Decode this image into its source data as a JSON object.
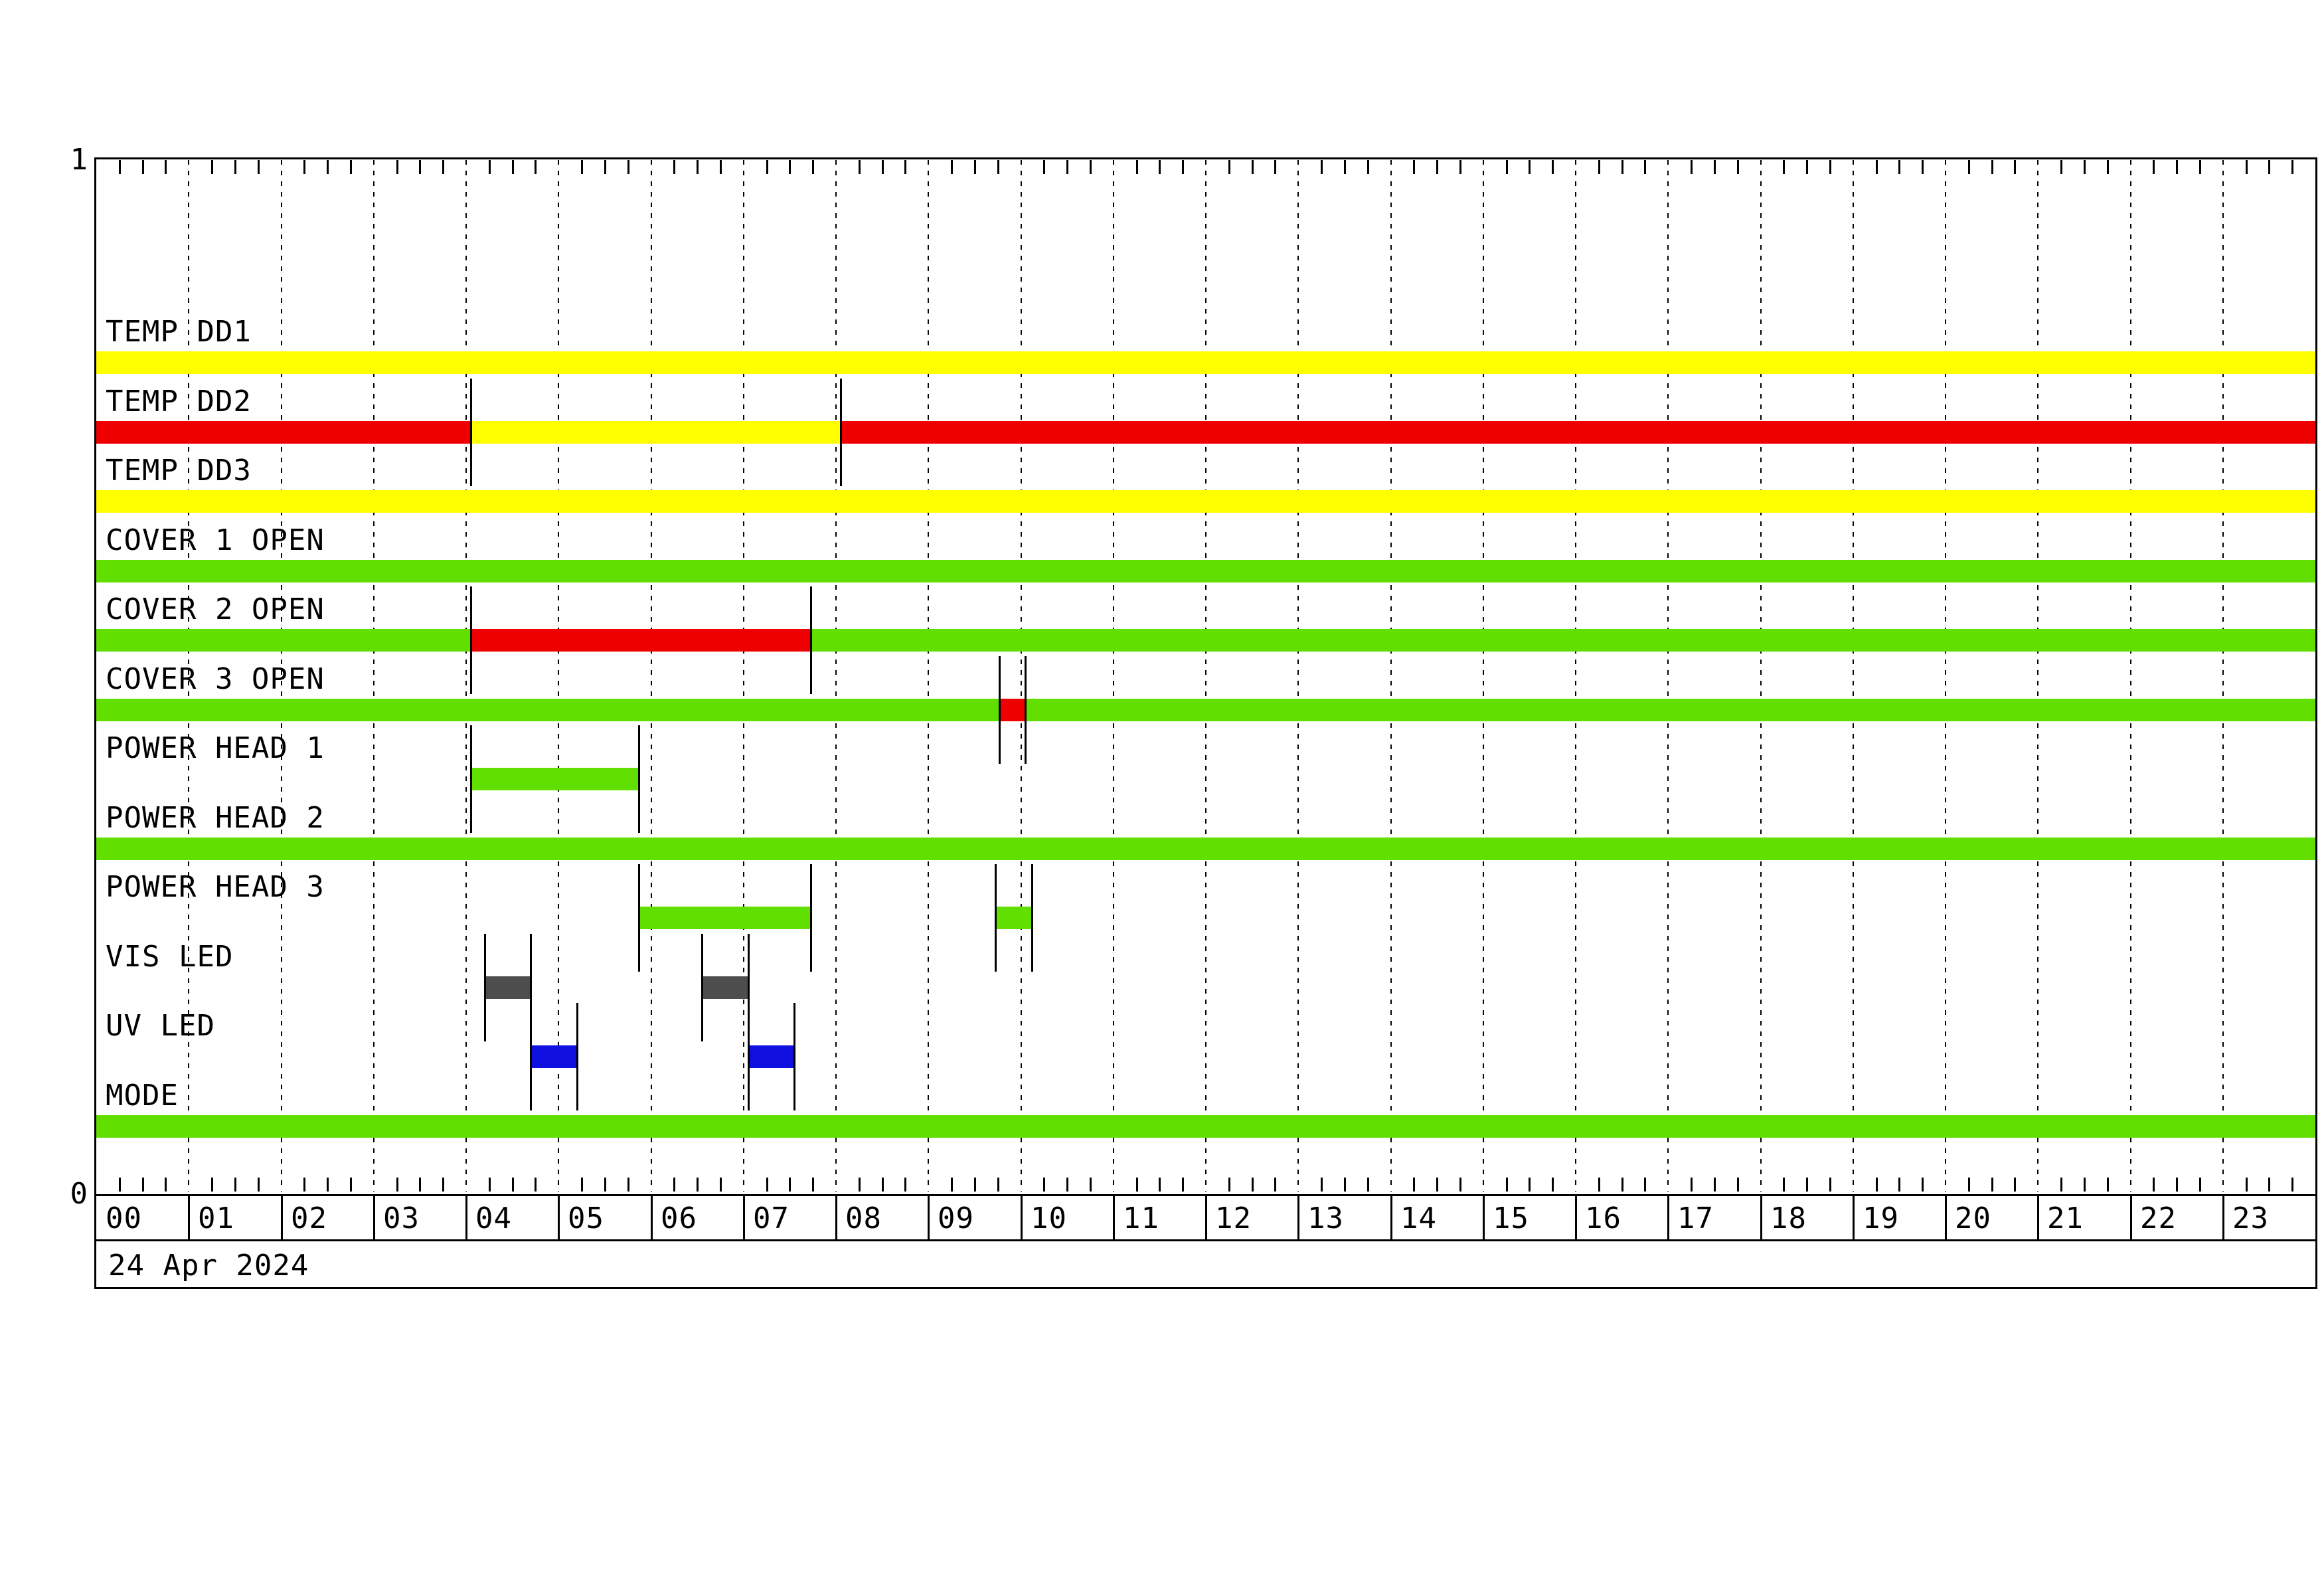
{
  "chart_data": {
    "type": "bar",
    "subtype": "state-timeline",
    "title": "",
    "date_label": "24 Apr 2024",
    "y_axis": {
      "top_label": "1",
      "bottom_label": "0"
    },
    "x_axis": {
      "unit": "hour-of-day",
      "range_hours": [
        0,
        24
      ],
      "hour_labels": [
        "00",
        "01",
        "02",
        "03",
        "04",
        "05",
        "06",
        "07",
        "08",
        "09",
        "10",
        "11",
        "12",
        "13",
        "14",
        "15",
        "16",
        "17",
        "18",
        "19",
        "20",
        "21",
        "22",
        "23"
      ],
      "minor_tick_minutes": 15,
      "gridlines": "dotted-hourly"
    },
    "state_colors": {
      "green": "#61DF00",
      "yellow": "#FFFF00",
      "red": "#EE0000",
      "gray": "#4D4D4D",
      "blue": "#1010E0"
    },
    "rows": [
      {
        "label": "TEMP DD1",
        "segments": [
          {
            "start": 0,
            "end": 24,
            "state": "yellow"
          }
        ],
        "markers": []
      },
      {
        "label": "TEMP DD2",
        "segments": [
          {
            "start": 0,
            "end": 4.05,
            "state": "red"
          },
          {
            "start": 4.05,
            "end": 8.05,
            "state": "yellow"
          },
          {
            "start": 8.05,
            "end": 24,
            "state": "red"
          }
        ],
        "markers": [
          4.05,
          8.05
        ]
      },
      {
        "label": "TEMP DD3",
        "segments": [
          {
            "start": 0,
            "end": 24,
            "state": "yellow"
          }
        ],
        "markers": []
      },
      {
        "label": "COVER 1 OPEN",
        "segments": [
          {
            "start": 0,
            "end": 24,
            "state": "green"
          }
        ],
        "markers": []
      },
      {
        "label": "COVER 2 OPEN",
        "segments": [
          {
            "start": 0,
            "end": 4.05,
            "state": "green"
          },
          {
            "start": 4.05,
            "end": 7.73,
            "state": "red"
          },
          {
            "start": 7.73,
            "end": 24,
            "state": "green"
          }
        ],
        "markers": [
          4.05,
          7.73
        ]
      },
      {
        "label": "COVER 3 OPEN",
        "segments": [
          {
            "start": 0,
            "end": 9.77,
            "state": "green"
          },
          {
            "start": 9.77,
            "end": 10.05,
            "state": "red"
          },
          {
            "start": 10.05,
            "end": 24,
            "state": "green"
          }
        ],
        "markers": [
          9.77,
          10.05
        ]
      },
      {
        "label": "POWER HEAD 1",
        "segments": [
          {
            "start": 4.05,
            "end": 5.87,
            "state": "green"
          }
        ],
        "markers": [
          4.05,
          5.87
        ]
      },
      {
        "label": "POWER HEAD 2",
        "segments": [
          {
            "start": 0,
            "end": 24,
            "state": "green"
          }
        ],
        "markers": []
      },
      {
        "label": "POWER HEAD 3",
        "segments": [
          {
            "start": 5.87,
            "end": 7.73,
            "state": "green"
          },
          {
            "start": 9.72,
            "end": 10.12,
            "state": "green"
          }
        ],
        "markers": [
          5.87,
          7.73,
          9.72,
          10.12
        ]
      },
      {
        "label": "VIS LED",
        "segments": [
          {
            "start": 4.2,
            "end": 4.7,
            "state": "gray"
          },
          {
            "start": 6.55,
            "end": 7.05,
            "state": "gray"
          }
        ],
        "markers": [
          4.2,
          4.7,
          6.55,
          7.05
        ]
      },
      {
        "label": "UV LED",
        "segments": [
          {
            "start": 4.7,
            "end": 5.2,
            "state": "blue"
          },
          {
            "start": 7.05,
            "end": 7.55,
            "state": "blue"
          }
        ],
        "markers": [
          4.7,
          5.2,
          7.05,
          7.55
        ]
      },
      {
        "label": "MODE",
        "segments": [
          {
            "start": 0,
            "end": 24,
            "state": "green"
          }
        ],
        "markers": []
      }
    ]
  }
}
